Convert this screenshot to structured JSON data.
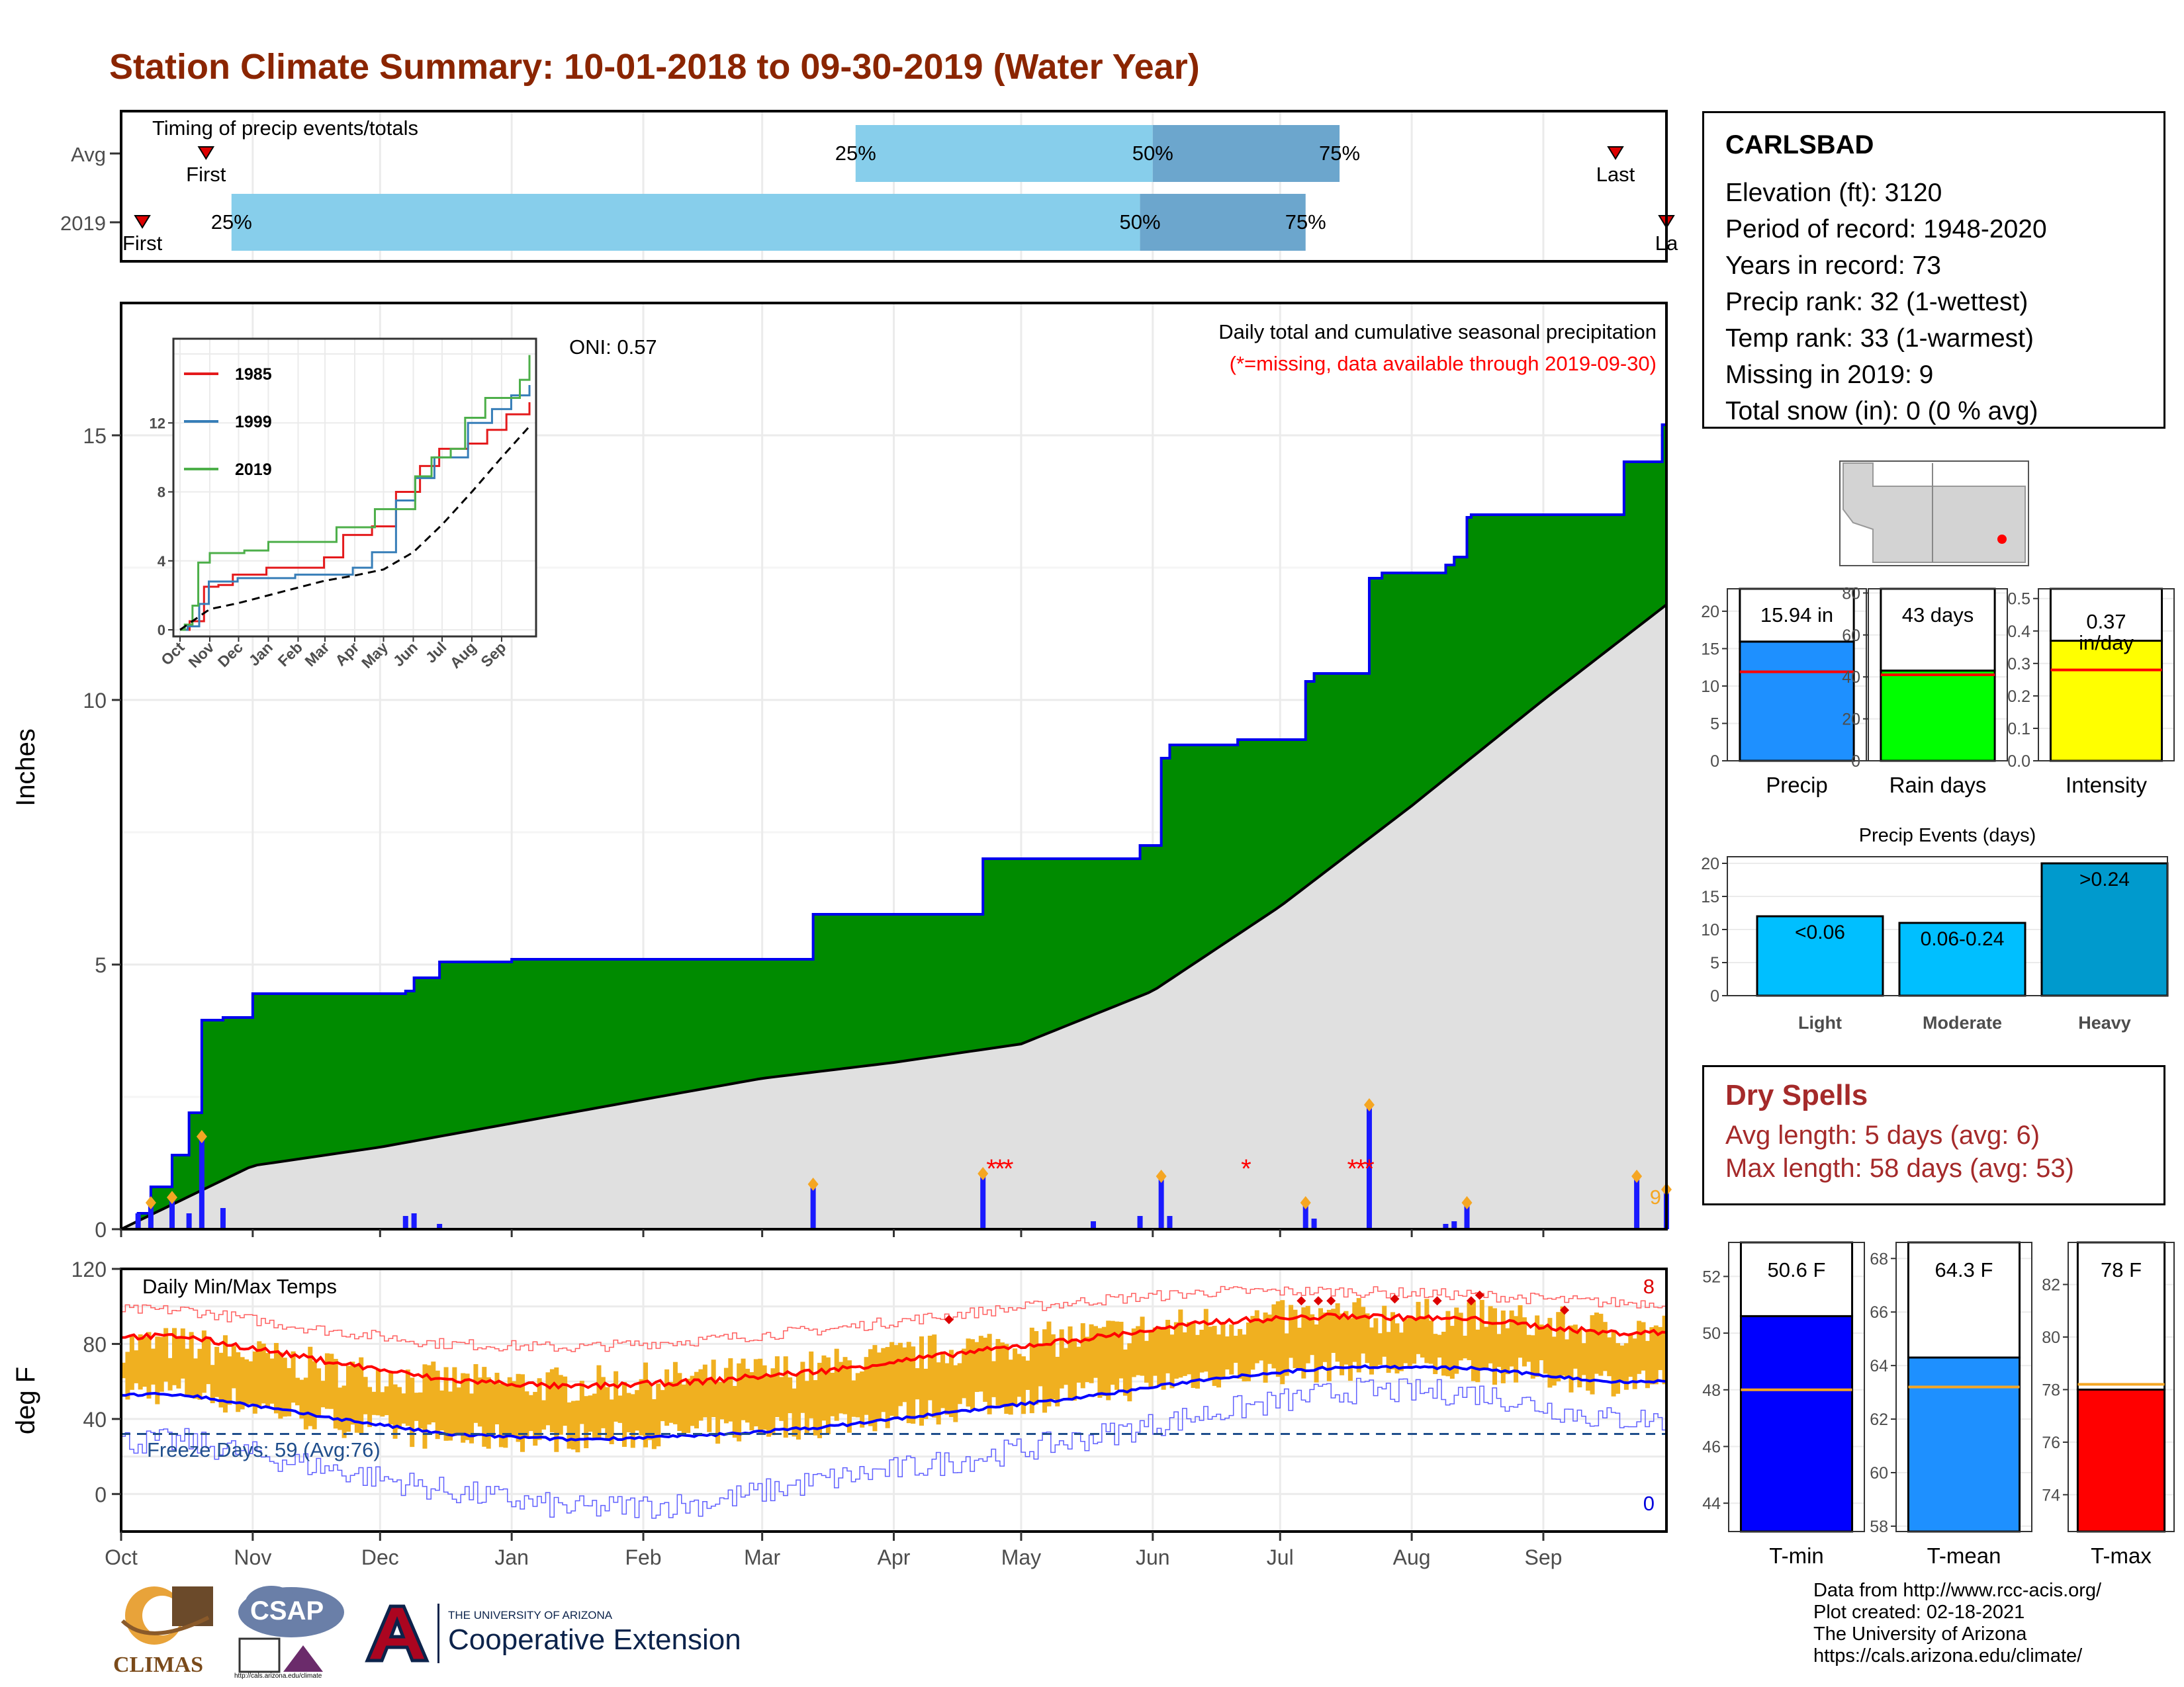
{
  "title": "Station Climate Summary: 10-01-2018 to 09-30-2019 (Water Year)",
  "colors": {
    "title": "#8b2500",
    "green": "#008b00",
    "blue_line": "#0000ee",
    "avg_gray": "#e0e0e0",
    "timing_light": "#87ceeb",
    "timing_dark": "#6ca6cd",
    "tmin": "#0000ff",
    "tmean": "#1e90ff",
    "tmax": "#ff0000",
    "temp_bar": "#f0b020",
    "precip_bar": "#1e90ff",
    "raindays_bar": "#00ff00",
    "intensity_bar": "#ffff00",
    "event_bar": "#00bfff",
    "event_bar_dark": "#009acd",
    "dryspell": "#a52a2a"
  },
  "timing": {
    "label": "Timing of precip events/totals",
    "rows": [
      {
        "name": "Avg",
        "first_label": "First",
        "last_label": "Last",
        "first_date": "2018-10-21",
        "last_date": "2019-09-18",
        "q25": "2019-03-23",
        "q50": "2019-06-01",
        "q75": "2019-07-15",
        "q25_label": "25%",
        "q50_label": "50%",
        "q75_label": "75%"
      },
      {
        "name": "2019",
        "first_label": "First",
        "last_label": "La",
        "first_date": "2018-10-06",
        "last_date": "2019-09-30",
        "q25": "2018-10-27",
        "q50": "2019-05-29",
        "q75": "2019-07-07",
        "q25_label": "25%",
        "q50_label": "50%",
        "q75_label": "75%"
      }
    ]
  },
  "precip_panel": {
    "ylabel": "Inches",
    "yticks": [
      0,
      5,
      10,
      15
    ],
    "ylim": [
      0,
      17.5
    ],
    "oni": "ONI: 0.57",
    "subtitle": "Daily total and cumulative seasonal precipitation",
    "missing_note": "(*=missing, data available through 2019-09-30)",
    "missing_count": "9",
    "inset": {
      "yticks": [
        0,
        4,
        8,
        12
      ],
      "xticks": [
        "Oct",
        "Nov",
        "Dec",
        "Jan",
        "Feb",
        "Mar",
        "Apr",
        "May",
        "Jun",
        "Jul",
        "Aug",
        "Sep"
      ],
      "legend": [
        {
          "name": "1985",
          "color": "#e41a1c"
        },
        {
          "name": "1999",
          "color": "#377eb8"
        },
        {
          "name": "2019",
          "color": "#4daf4a"
        }
      ]
    }
  },
  "temp_panel": {
    "ylabel": "deg F",
    "yticks": [
      0,
      40,
      80,
      120
    ],
    "label": "Daily Min/Max Temps",
    "freeze_label": "Freeze Days: 59 (Avg:76)",
    "freeze_line": 32,
    "high_count": "8",
    "low_count": "0"
  },
  "month_ticks": [
    "Oct",
    "Nov",
    "Dec",
    "Jan",
    "Feb",
    "Mar",
    "Apr",
    "May",
    "Jun",
    "Jul",
    "Aug",
    "Sep"
  ],
  "station": {
    "name": "CARLSBAD",
    "lines": [
      "Elevation (ft): 3120",
      "Period of record: 1948-2020",
      "Years in record: 73",
      "Precip rank: 32 (1-wettest)",
      "Temp rank: 33 (1-warmest)",
      "Missing in 2019: 9",
      "Total snow (in): 0 (0 % avg)"
    ]
  },
  "summary_bars": [
    {
      "label": "Precip",
      "value": 15.94,
      "value_label": "15.94 in",
      "avg": 11.9,
      "ylim": [
        0,
        23
      ],
      "yticks": [
        0,
        5,
        10,
        15,
        20
      ]
    },
    {
      "label": "Rain days",
      "value": 43,
      "value_label": "43 days",
      "avg": 41,
      "ylim": [
        0,
        82
      ],
      "yticks": [
        0,
        20,
        40,
        60,
        80
      ]
    },
    {
      "label": "Intensity",
      "value": 0.37,
      "value_label": "0.37",
      "value_label2": "in/day",
      "avg": 0.28,
      "ylim": [
        0,
        0.53
      ],
      "yticks": [
        0.0,
        0.1,
        0.2,
        0.3,
        0.4,
        0.5
      ]
    }
  ],
  "events": {
    "title": "Precip Events (days)",
    "yticks": [
      0,
      5,
      10,
      15,
      20
    ],
    "ylim": [
      0,
      21
    ],
    "bars": [
      {
        "label": "Light",
        "value": 12,
        "value_label": "<0.06"
      },
      {
        "label": "Moderate",
        "value": 11,
        "value_label": "0.06-0.24"
      },
      {
        "label": "Heavy",
        "value": 20,
        "value_label": ">0.24"
      }
    ]
  },
  "dry_spells": {
    "title": "Dry Spells",
    "lines": [
      "Avg length: 5 days (avg: 6)",
      "Max length: 58 days (avg: 53)"
    ]
  },
  "temp_bars": [
    {
      "label": "T-min",
      "value": 50.6,
      "value_label": "50.6 F",
      "avg": 48.0,
      "ylim": [
        43,
        53.2
      ],
      "yticks": [
        44,
        46,
        48,
        50,
        52
      ]
    },
    {
      "label": "T-mean",
      "value": 64.3,
      "value_label": "64.3 F",
      "avg": 63.2,
      "ylim": [
        57.8,
        68.6
      ],
      "yticks": [
        58,
        60,
        62,
        64,
        66,
        68
      ]
    },
    {
      "label": "T-max",
      "value": 78,
      "value_label": "78 F",
      "avg": 78.2,
      "ylim": [
        72.6,
        83.6
      ],
      "yticks": [
        74,
        76,
        78,
        80,
        82
      ]
    }
  ],
  "footer": {
    "lines": [
      "Data from http://www.rcc-acis.org/",
      "Plot created: 02-18-2021",
      "The University of Arizona",
      "https://cals.arizona.edu/climate/"
    ],
    "climas": "CLIMAS",
    "csap": "CSAP",
    "csap_url": "http://cals.arizona.edu/climate",
    "ua_small": "THE UNIVERSITY OF ARIZONA",
    "ua_big": "Cooperative Extension"
  },
  "chart_data": [
    {
      "type": "area",
      "title": "Daily total and cumulative seasonal precipitation",
      "ylabel": "Inches",
      "ylim": [
        0,
        17.5
      ],
      "series": [
        {
          "name": "2019",
          "x": [
            "2018-10-01",
            "2018-10-05",
            "2018-10-08",
            "2018-10-13",
            "2018-10-17",
            "2018-10-20",
            "2018-10-25",
            "2018-11-01",
            "2018-12-07",
            "2018-12-09",
            "2018-12-15",
            "2019-01-01",
            "2019-03-13",
            "2019-04-22",
            "2019-05-29",
            "2019-06-03",
            "2019-06-05",
            "2019-06-21",
            "2019-07-07",
            "2019-07-09",
            "2019-07-22",
            "2019-07-25",
            "2019-08-09",
            "2019-08-11",
            "2019-08-14",
            "2019-08-15",
            "2019-09-20",
            "2019-09-23",
            "2019-09-29",
            "2019-09-30"
          ],
          "values": [
            0.0,
            0.3,
            0.8,
            1.4,
            2.2,
            3.95,
            4.0,
            4.45,
            4.5,
            4.75,
            5.05,
            5.1,
            5.95,
            7.0,
            7.25,
            8.9,
            9.15,
            9.25,
            10.35,
            10.5,
            12.3,
            12.4,
            12.55,
            12.7,
            13.45,
            13.5,
            14.5,
            14.5,
            15.2,
            15.94
          ]
        },
        {
          "name": "Avg",
          "x": [
            "2018-10-01",
            "2018-11-01",
            "2018-12-01",
            "2019-01-01",
            "2019-02-01",
            "2019-03-01",
            "2019-04-01",
            "2019-05-01",
            "2019-06-01",
            "2019-07-01",
            "2019-08-01",
            "2019-09-01",
            "2019-09-30"
          ],
          "values": [
            0.0,
            1.2,
            1.55,
            2.0,
            2.45,
            2.85,
            3.15,
            3.5,
            4.5,
            6.1,
            8.0,
            10.0,
            11.8
          ]
        }
      ],
      "daily_precip": {
        "dates": [
          "2018-10-05",
          "2018-10-08",
          "2018-10-13",
          "2018-10-17",
          "2018-10-20",
          "2018-10-25",
          "2018-12-07",
          "2018-12-09",
          "2018-12-15",
          "2019-03-13",
          "2019-04-22",
          "2019-05-18",
          "2019-05-29",
          "2019-06-03",
          "2019-06-05",
          "2019-07-07",
          "2019-07-09",
          "2019-07-22",
          "2019-08-09",
          "2019-08-11",
          "2019-08-14",
          "2019-09-23",
          "2019-09-30"
        ],
        "values": [
          0.3,
          0.5,
          0.6,
          0.3,
          1.75,
          0.4,
          0.25,
          0.3,
          0.1,
          0.85,
          1.05,
          0.15,
          0.25,
          1.0,
          0.25,
          0.5,
          0.2,
          2.35,
          0.1,
          0.15,
          0.5,
          1.0,
          0.75
        ]
      }
    },
    {
      "type": "line",
      "title": "Daily Min/Max Temps",
      "ylabel": "deg F",
      "ylim": [
        -20,
        120
      ],
      "x_months": [
        "Oct",
        "Nov",
        "Dec",
        "Jan",
        "Feb",
        "Mar",
        "Apr",
        "May",
        "Jun",
        "Jul",
        "Aug",
        "Sep"
      ],
      "series": [
        {
          "name": "avg max",
          "values": [
            84,
            72,
            61,
            57,
            60,
            66,
            75,
            83,
            92,
            95,
            93,
            86
          ]
        },
        {
          "name": "avg min",
          "values": [
            53,
            42,
            32,
            29,
            31,
            36,
            44,
            52,
            62,
            68,
            67,
            60
          ]
        },
        {
          "name": "record high",
          "values": [
            98,
            88,
            80,
            78,
            82,
            88,
            96,
            103,
            108,
            108,
            106,
            102
          ]
        },
        {
          "name": "record low",
          "values": [
            28,
            15,
            2,
            -8,
            -5,
            8,
            18,
            30,
            44,
            55,
            54,
            40
          ]
        },
        {
          "name": "2019 max",
          "values": [
            80,
            68,
            60,
            58,
            62,
            68,
            78,
            84,
            92,
            95,
            94,
            88
          ]
        },
        {
          "name": "2019 min",
          "values": [
            55,
            40,
            30,
            30,
            33,
            38,
            46,
            54,
            64,
            68,
            67,
            60
          ]
        }
      ]
    },
    {
      "type": "bar",
      "title": "Precip Events (days)",
      "categories": [
        "Light",
        "Moderate",
        "Heavy"
      ],
      "values": [
        12,
        11,
        20
      ],
      "ylim": [
        0,
        21
      ]
    },
    {
      "type": "bar",
      "categories": [
        "Precip",
        "Rain days",
        "Intensity"
      ],
      "values": [
        15.94,
        43,
        0.37
      ]
    },
    {
      "type": "bar",
      "categories": [
        "T-min",
        "T-mean",
        "T-max"
      ],
      "values": [
        50.6,
        64.3,
        78
      ]
    }
  ]
}
